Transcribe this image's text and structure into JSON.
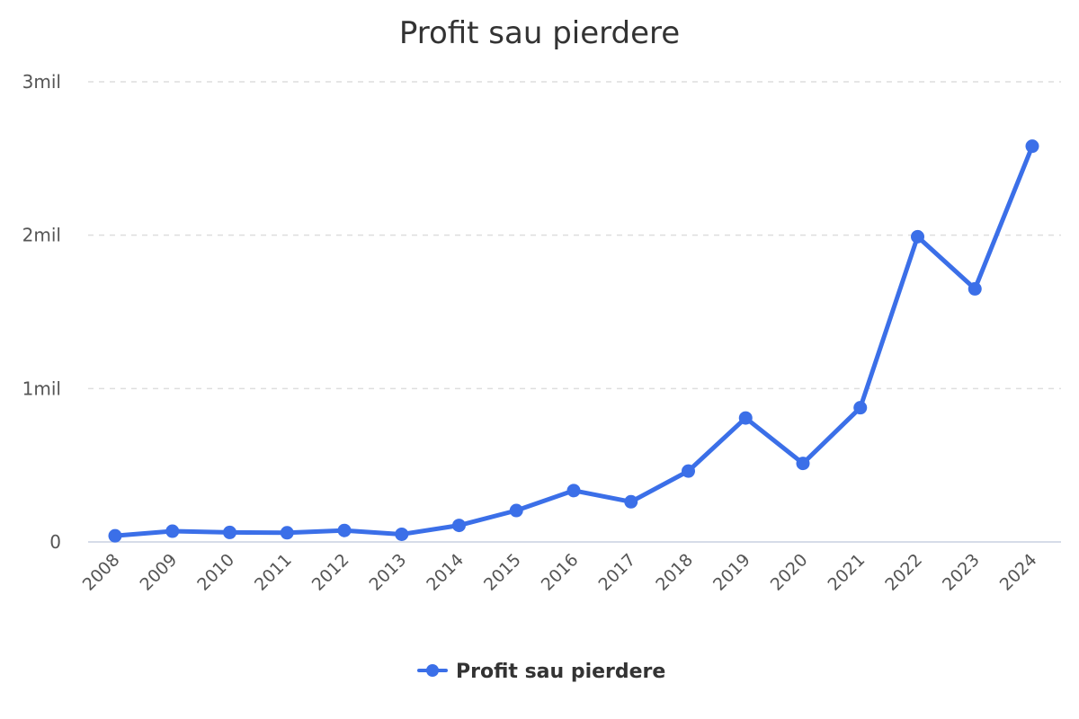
{
  "chart_data": {
    "type": "line",
    "title": "Profit sau pierdere",
    "categories": [
      "2008",
      "2009",
      "2010",
      "2011",
      "2012",
      "2013",
      "2014",
      "2015",
      "2016",
      "2017",
      "2018",
      "2019",
      "2020",
      "2021",
      "2022",
      "2023",
      "2024"
    ],
    "series": [
      {
        "name": "Profit sau pierdere",
        "values": [
          40000,
          70000,
          62000,
          60000,
          75000,
          50000,
          108000,
          205000,
          335000,
          262000,
          462000,
          808000,
          512000,
          875000,
          1990000,
          1650000,
          2580000
        ],
        "color": "#3b6fe8"
      }
    ],
    "ylim": [
      0,
      3000000
    ],
    "yticks": [
      {
        "value": 0,
        "label": "0"
      },
      {
        "value": 1000000,
        "label": "1mil"
      },
      {
        "value": 2000000,
        "label": "2mil"
      },
      {
        "value": 3000000,
        "label": "3mil"
      }
    ],
    "grid": true,
    "legend_position": "bottom-center"
  }
}
